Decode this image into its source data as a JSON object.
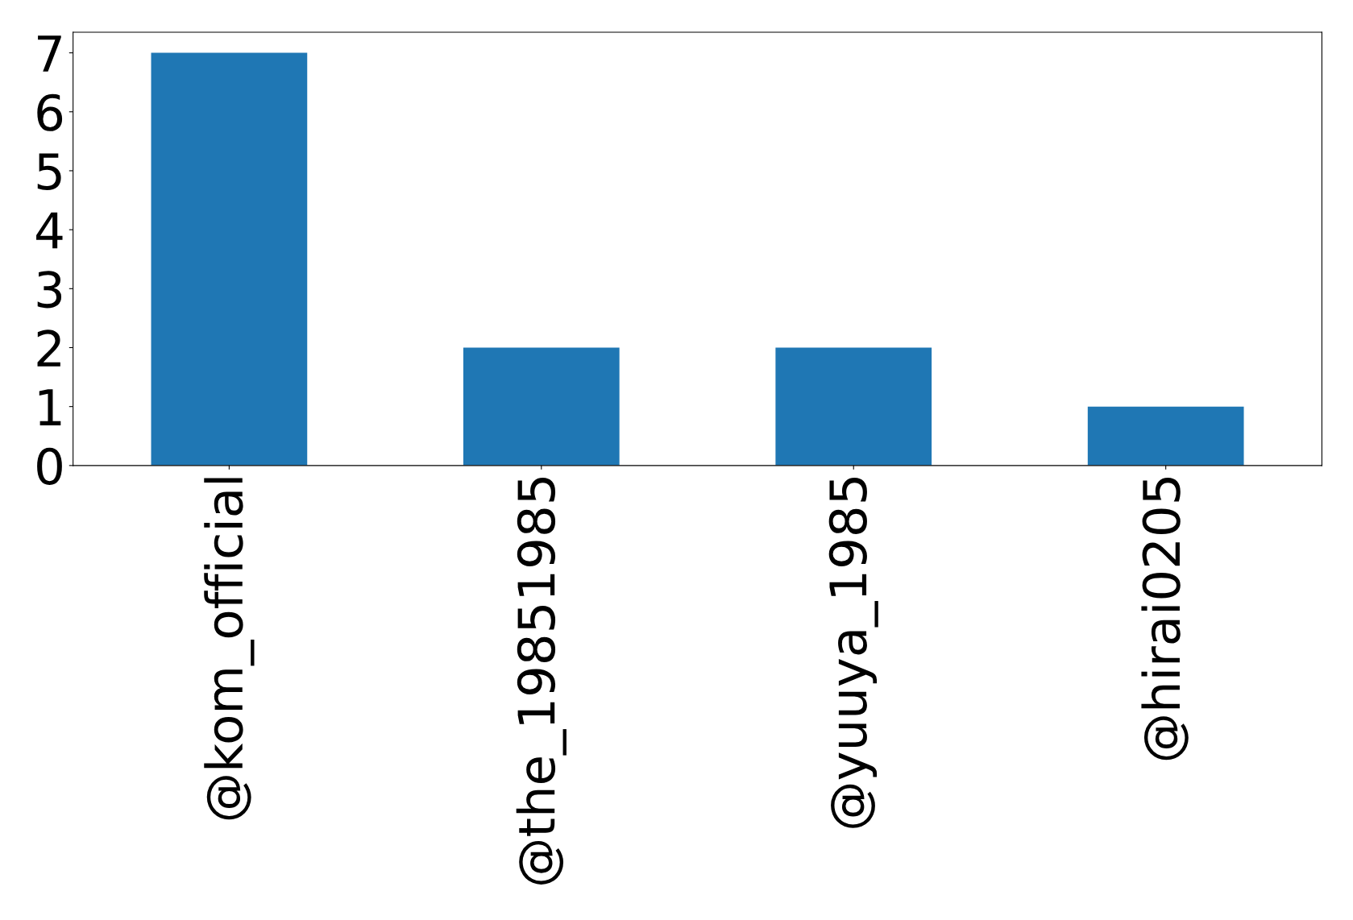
{
  "chart_data": {
    "type": "bar",
    "categories": [
      "@kom_official",
      "@the_19851985",
      "@yuuya_1985",
      "@hirai0205"
    ],
    "values": [
      7,
      2,
      2,
      1
    ],
    "color": "#1f77b4",
    "ylim": [
      0,
      7.35
    ],
    "yticks": [
      0,
      1,
      2,
      3,
      4,
      5,
      6,
      7
    ],
    "grid": false
  }
}
